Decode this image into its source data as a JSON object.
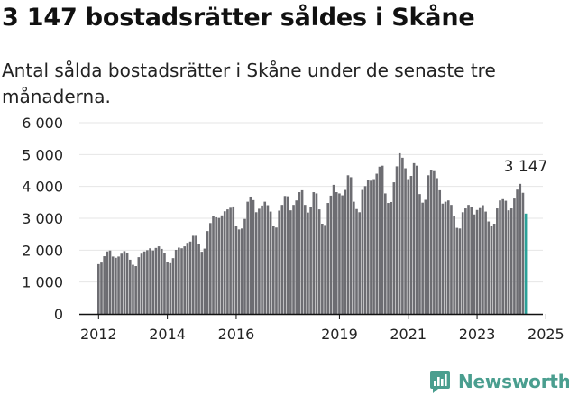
{
  "title": "3 147 bostadsrätter såldes i Skåne",
  "subtitle": "Antal sålda bostadsrätter i Skåne under de senaste tre månaderna.",
  "brand": {
    "name": "Newsworthy",
    "color": "#4a9e8f",
    "icon": "newsworthy-logo-icon"
  },
  "colors": {
    "bar": "#6d6d72",
    "highlight": "#2aa198",
    "axis": "#111111",
    "grid": "#e6e6e6"
  },
  "chart_data": {
    "type": "bar",
    "title": "3 147 bostadsrätter såldes i Skåne",
    "xlabel": "",
    "ylabel": "",
    "ylim": [
      0,
      6000
    ],
    "y_ticks": [
      {
        "value": 0,
        "label": "0"
      },
      {
        "value": 1000,
        "label": "1 000"
      },
      {
        "value": 2000,
        "label": "2 000"
      },
      {
        "value": 3000,
        "label": "3 000"
      },
      {
        "value": 4000,
        "label": "4 000"
      },
      {
        "value": 5000,
        "label": "5 000"
      },
      {
        "value": 6000,
        "label": "6 000"
      }
    ],
    "x_ticks": [
      "2012",
      "2014",
      "2016",
      "2019",
      "2021",
      "2023",
      "2025"
    ],
    "x_tick_positions": [
      0,
      24,
      48,
      84,
      108,
      132,
      156
    ],
    "start": "2012-01",
    "frequency": "monthly, rolling 3-month total",
    "highlight_label": "3 147",
    "values": [
      1560,
      1610,
      1810,
      1960,
      1990,
      1800,
      1760,
      1800,
      1890,
      1970,
      1900,
      1700,
      1540,
      1500,
      1780,
      1890,
      1960,
      2000,
      2060,
      1990,
      2070,
      2120,
      2040,
      1920,
      1640,
      1590,
      1750,
      2010,
      2080,
      2060,
      2120,
      2230,
      2270,
      2450,
      2450,
      2200,
      1950,
      2050,
      2600,
      2850,
      3060,
      3030,
      3010,
      3090,
      3220,
      3280,
      3330,
      3370,
      2750,
      2650,
      2680,
      2980,
      3520,
      3680,
      3570,
      3190,
      3300,
      3400,
      3520,
      3410,
      3210,
      2760,
      2710,
      3240,
      3420,
      3700,
      3690,
      3250,
      3420,
      3560,
      3820,
      3880,
      3420,
      3180,
      3340,
      3820,
      3780,
      3280,
      2830,
      2790,
      3480,
      3710,
      4050,
      3820,
      3780,
      3720,
      3890,
      4350,
      4290,
      3520,
      3290,
      3190,
      3890,
      4010,
      4200,
      4180,
      4230,
      4400,
      4620,
      4650,
      3780,
      3480,
      3510,
      4130,
      4630,
      5040,
      4900,
      4570,
      4230,
      4330,
      4730,
      4650,
      3760,
      3490,
      3580,
      4350,
      4500,
      4480,
      4260,
      3880,
      3460,
      3520,
      3560,
      3420,
      3080,
      2700,
      2680,
      3190,
      3310,
      3420,
      3350,
      3120,
      3260,
      3320,
      3410,
      3210,
      2900,
      2750,
      2830,
      3310,
      3560,
      3600,
      3550,
      3250,
      3310,
      3620,
      3900,
      4080,
      3800,
      3147
    ]
  }
}
